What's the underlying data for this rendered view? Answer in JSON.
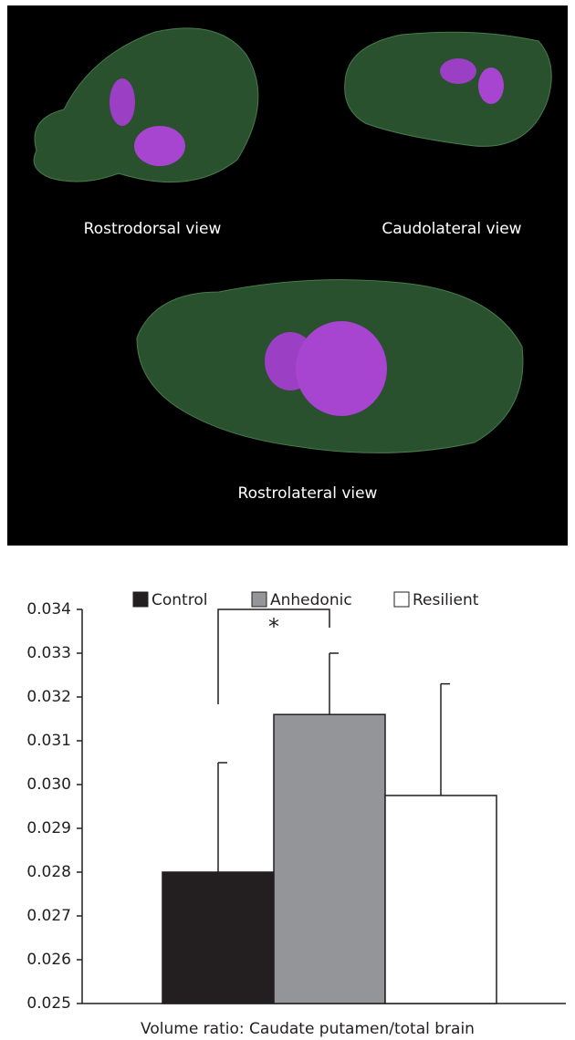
{
  "panel": {
    "labels": [
      "Rostrodorsal view",
      "Caudolateral view",
      "Rostrolateral view"
    ]
  },
  "chart_data": {
    "type": "bar",
    "x_label": "Volume ratio: Caudate putamen/total brain",
    "annotation": "*",
    "categories": [
      null
    ],
    "series": [
      {
        "name": "Control",
        "color": "#231f20",
        "values": [
          0.028
        ],
        "errors": [
          0.0025
        ]
      },
      {
        "name": "Anhedonic",
        "color": "#939598",
        "values": [
          0.0316
        ],
        "errors": [
          0.0014
        ]
      },
      {
        "name": "Resilient",
        "color": "#ffffff",
        "values": [
          0.02975
        ],
        "errors": [
          0.00255
        ]
      }
    ],
    "ylim": [
      0.025,
      0.034
    ],
    "yticks": [
      0.025,
      0.026,
      0.027,
      0.028,
      0.029,
      {
        "value": 0.03,
        "label": "0.030"
      },
      0.031,
      0.032,
      0.033,
      0.034
    ]
  }
}
